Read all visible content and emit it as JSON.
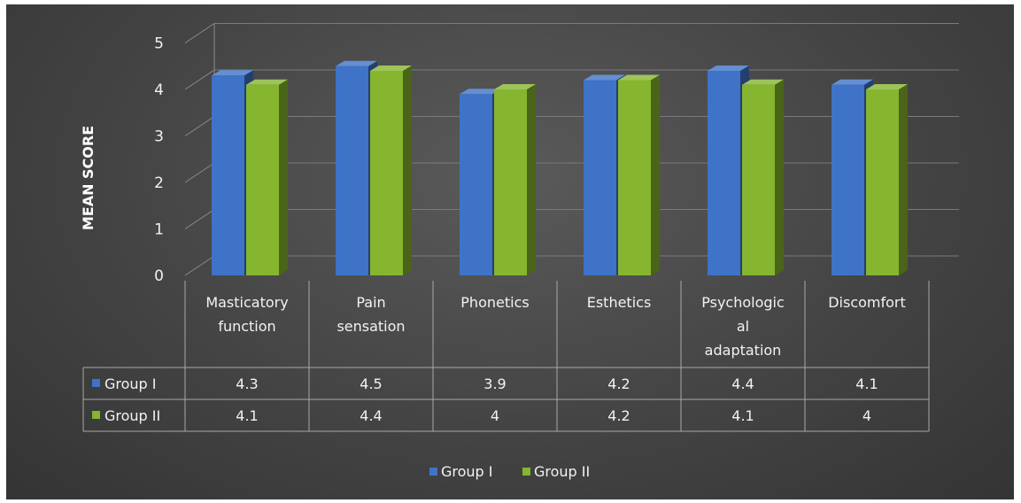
{
  "chart_data": {
    "type": "bar",
    "categories": [
      [
        "Masticatory",
        "function"
      ],
      [
        "Pain",
        "sensation"
      ],
      [
        "Phonetics"
      ],
      [
        "Esthetics"
      ],
      [
        "Psychologic",
        "al",
        "adaptation"
      ],
      [
        "Discomfort"
      ]
    ],
    "series": [
      {
        "name": "Group I",
        "values": [
          4.3,
          4.5,
          3.9,
          4.2,
          4.4,
          4.1
        ],
        "labels": [
          "4.3",
          "4.5",
          "3.9",
          "4.2",
          "4.4",
          "4.1"
        ],
        "color": "#3f73c8"
      },
      {
        "name": "Group II",
        "values": [
          4.1,
          4.4,
          4,
          4.2,
          4.1,
          4
        ],
        "labels": [
          "4.1",
          "4.4",
          "4",
          "4.2",
          "4.1",
          "4"
        ],
        "color": "#86b52f"
      }
    ],
    "ylabel": "MEAN SCORE",
    "yticks": [
      "0",
      "1",
      "2",
      "3",
      "4",
      "5"
    ],
    "ylim": [
      0,
      5
    ],
    "grid": true,
    "style": "3d-column",
    "data_table": true,
    "legend": "bottom"
  }
}
